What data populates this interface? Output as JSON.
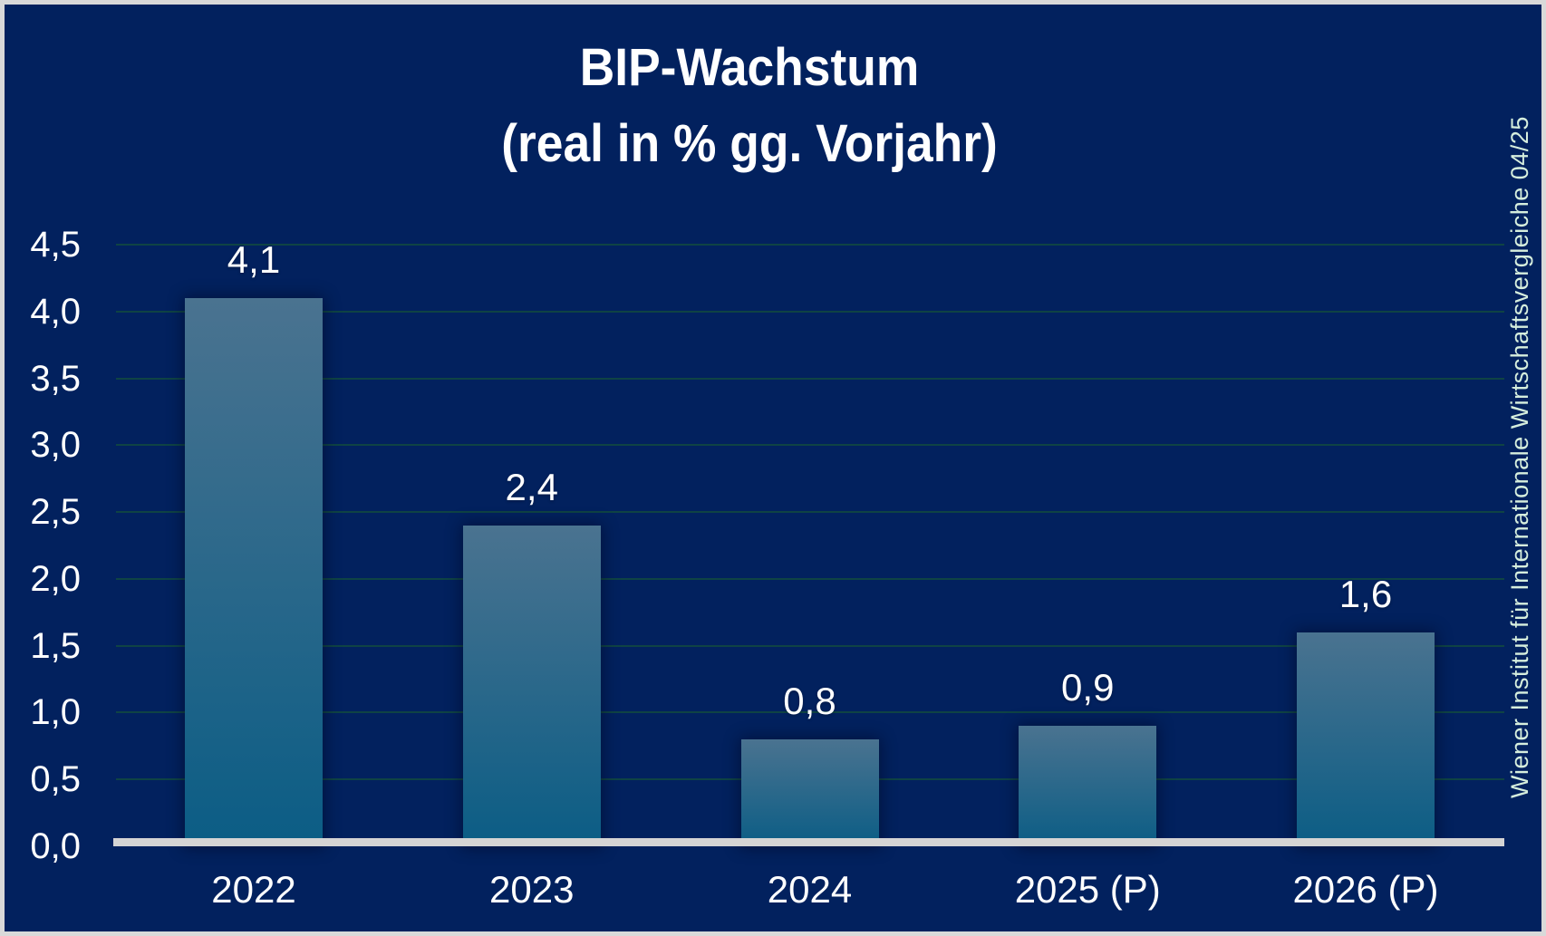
{
  "title": {
    "line1": "BIP-Wachstum",
    "line2": "(real in % gg. Vorjahr)"
  },
  "source_note": "Wiener Institut für Internationale Wirtschaftsvergleiche 04/25",
  "colors": {
    "background": "#02215e",
    "frame_border": "#d9d9d9",
    "bar_gradient_top": "#4a7390",
    "bar_gradient_bottom": "#0b5d85",
    "gridline": "#12493f",
    "axis_baseline": "#d4d4d4",
    "label_text": "#ffffff",
    "source_text": "#d6eedd"
  },
  "chart_data": {
    "type": "bar",
    "title": "BIP-Wachstum (real in % gg. Vorjahr)",
    "categories": [
      "2022",
      "2023",
      "2024",
      "2025 (P)",
      "2026 (P)"
    ],
    "values": [
      4.1,
      2.4,
      0.8,
      0.9,
      1.6
    ],
    "value_labels": [
      "4,1",
      "2,4",
      "0,8",
      "0,9",
      "1,6"
    ],
    "xlabel": "",
    "ylabel": "",
    "ylim": [
      0,
      4.5
    ],
    "ytick_step": 0.5,
    "ytick_labels": [
      "0,0",
      "0,5",
      "1,0",
      "1,5",
      "2,0",
      "2,5",
      "3,0",
      "3,5",
      "4,0",
      "4,5"
    ],
    "grid": true,
    "legend": false
  }
}
